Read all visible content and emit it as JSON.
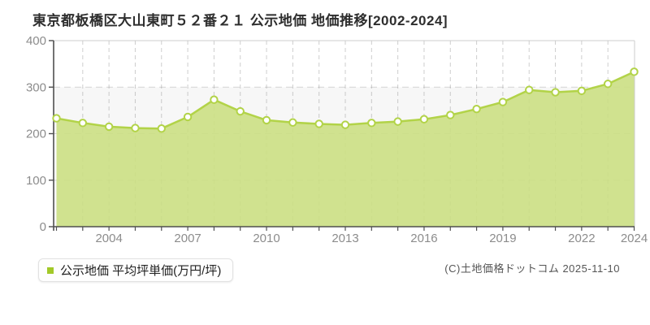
{
  "title": "東京都板橋区大山東町５２番２１ 公示地価 地価推移[2002-2024]",
  "legend": {
    "label": "公示地価 平均坪単価(万円/坪)"
  },
  "copyright": "(C)土地価格ドットコム 2025-11-10",
  "chart_data": {
    "type": "area",
    "title": "東京都板橋区大山東町５２番２１ 公示地価 地価推移[2002-2024]",
    "x": [
      2002,
      2003,
      2004,
      2005,
      2006,
      2007,
      2008,
      2009,
      2010,
      2011,
      2012,
      2013,
      2014,
      2015,
      2016,
      2017,
      2018,
      2019,
      2020,
      2021,
      2022,
      2023,
      2024
    ],
    "series": [
      {
        "name": "公示地価 平均坪単価(万円/坪)",
        "values": [
          233,
          223,
          215,
          212,
          211,
          236,
          273,
          248,
          229,
          224,
          221,
          219,
          223,
          226,
          231,
          240,
          253,
          268,
          294,
          289,
          292,
          307,
          333
        ]
      }
    ],
    "unit": "万円/坪",
    "ylim": [
      0,
      400
    ],
    "yticks": [
      0,
      100,
      200,
      300,
      400
    ],
    "xticks_labeled": [
      2004,
      2007,
      2010,
      2013,
      2016,
      2019,
      2022,
      2024
    ],
    "grid": true,
    "legend_position": "bottom-left",
    "colors": {
      "line": "#b2d348",
      "fill": "#cbdf83",
      "marker_fill": "#ffffff",
      "marker_ring": "#b2d348",
      "legend_marker": "#a2c928",
      "axis": "#4f4f4f",
      "plot_border": "#cccccc",
      "grid": "#8a8a8a",
      "tick_label": "#8c8c8c",
      "band_alt": "#f7f7f7"
    }
  }
}
